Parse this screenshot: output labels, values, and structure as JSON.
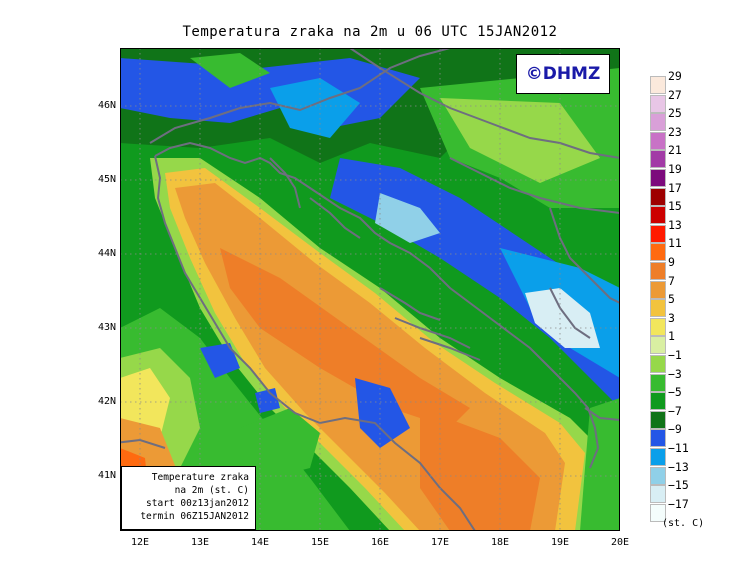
{
  "title": "Temperatura zraka na 2m u 06 UTC 15JAN2012",
  "logo_text": "©DHMZ",
  "info": {
    "line1": "Temperature zraka",
    "line2": "na 2m (st. C)",
    "line3": "start 00z13jan2012",
    "line4": "termin 06Z15JAN2012"
  },
  "lat_ticks": [
    "46N",
    "45N",
    "44N",
    "43N",
    "42N",
    "41N"
  ],
  "lon_ticks": [
    "12E",
    "13E",
    "14E",
    "15E",
    "16E",
    "17E",
    "18E",
    "19E",
    "20E"
  ],
  "colorbar": {
    "labels": [
      "29",
      "27",
      "25",
      "23",
      "21",
      "19",
      "17",
      "15",
      "13",
      "11",
      "9",
      "7",
      "5",
      "3",
      "1",
      "−1",
      "−3",
      "−5",
      "−7",
      "−9",
      "−11",
      "−13",
      "−15",
      "−17"
    ],
    "colors": [
      "#fbe9dc",
      "#e8c6e6",
      "#d9a0d8",
      "#c872c6",
      "#a23ba6",
      "#7c0a7c",
      "#9e0000",
      "#cc0000",
      "#ff1a00",
      "#ff6a10",
      "#ee7e28",
      "#ec9a36",
      "#f2c33e",
      "#f2e65c",
      "#d9efa2",
      "#96d84a",
      "#38bb30",
      "#109a1e",
      "#107418",
      "#2356e6",
      "#0a9fea",
      "#90d0e8",
      "#d8eef4",
      "#f4fdfc"
    ],
    "units": "(st. C)"
  }
}
